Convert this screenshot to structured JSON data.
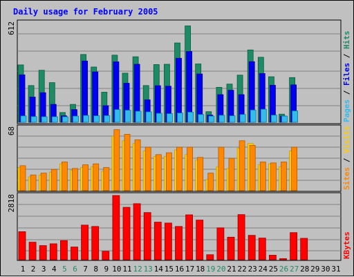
{
  "title": "Daily usage for February 2005",
  "colors": {
    "hits": "#1f8a66",
    "files": "#0000ee",
    "pages": "#33bbee",
    "visits": "#ffcc00",
    "sites": "#ff8800",
    "kbytes": "#ff0000",
    "weekend_label": "#1f8a66",
    "weekday_label": "#000000"
  },
  "chart_data": [
    {
      "type": "bar",
      "panel": "hits-files-pages",
      "max_label": "612",
      "ylim": [
        0,
        612
      ],
      "legend": [
        "Pages",
        "Files",
        "Hits"
      ],
      "legend_separator": " / ",
      "x": [
        "1",
        "2",
        "3",
        "4",
        "5",
        "6",
        "7",
        "8",
        "9",
        "10",
        "11",
        "12",
        "13",
        "14",
        "15",
        "16",
        "17",
        "18",
        "19",
        "20",
        "21",
        "22",
        "23",
        "24",
        "25",
        "26",
        "27",
        "28",
        "29",
        "30",
        "31"
      ],
      "weekend_days": [
        "5",
        "6",
        "12",
        "13",
        "19",
        "20",
        "26",
        "27"
      ],
      "series": [
        {
          "name": "Hits",
          "values": [
            353,
            226,
            320,
            244,
            60,
            110,
            417,
            340,
            185,
            413,
            302,
            403,
            226,
            355,
            357,
            488,
            593,
            359,
            65,
            215,
            235,
            290,
            445,
            400,
            280,
            50,
            275,
            0,
            0,
            0,
            0
          ]
        },
        {
          "name": "Files",
          "values": [
            292,
            155,
            182,
            110,
            40,
            78,
            377,
            310,
            102,
            372,
            240,
            357,
            138,
            225,
            222,
            394,
            436,
            297,
            44,
            170,
            197,
            170,
            373,
            300,
            228,
            38,
            230,
            0,
            0,
            0,
            0
          ]
        },
        {
          "name": "Pages",
          "values": [
            39,
            35,
            34,
            34,
            34,
            38,
            42,
            40,
            41,
            78,
            74,
            68,
            64,
            55,
            53,
            57,
            62,
            48,
            38,
            43,
            40,
            48,
            75,
            80,
            44,
            38,
            70,
            0,
            0,
            0,
            0
          ]
        }
      ]
    },
    {
      "type": "bar",
      "panel": "visits-sites",
      "max_label": "68",
      "ylim": [
        0,
        68
      ],
      "legend": [
        "Sites",
        "Visits"
      ],
      "legend_separator": " / ",
      "x": [
        "1",
        "2",
        "3",
        "4",
        "5",
        "6",
        "7",
        "8",
        "9",
        "10",
        "11",
        "12",
        "13",
        "14",
        "15",
        "16",
        "17",
        "18",
        "19",
        "20",
        "21",
        "22",
        "23",
        "24",
        "25",
        "26",
        "27",
        "28",
        "29",
        "30",
        "31"
      ],
      "series": [
        {
          "name": "Visits",
          "values": [
            25,
            15,
            17,
            20,
            29,
            22,
            25,
            26,
            21,
            59,
            54,
            51,
            43,
            37,
            37,
            44,
            39,
            33,
            12,
            26,
            24,
            46,
            51,
            28,
            29,
            26,
            43,
            0,
            0,
            0,
            0
          ]
        },
        {
          "name": "Sites",
          "values": [
            27,
            17,
            19,
            23,
            31,
            24,
            28,
            29,
            25,
            66,
            61,
            55,
            47,
            39,
            41,
            47,
            47,
            36,
            19,
            47,
            35,
            54,
            49,
            31,
            30,
            31,
            47,
            0,
            0,
            0,
            0
          ]
        }
      ]
    },
    {
      "type": "bar",
      "panel": "kbytes",
      "max_label": "2818",
      "ylim": [
        0,
        2818
      ],
      "legend": [
        "KBytes"
      ],
      "x": [
        "1",
        "2",
        "3",
        "4",
        "5",
        "6",
        "7",
        "8",
        "9",
        "10",
        "11",
        "12",
        "13",
        "14",
        "15",
        "16",
        "17",
        "18",
        "19",
        "20",
        "21",
        "22",
        "23",
        "24",
        "25",
        "26",
        "27",
        "28",
        "29",
        "30",
        "31"
      ],
      "series": [
        {
          "name": "KBytes",
          "values": [
            1230,
            770,
            620,
            700,
            840,
            560,
            1520,
            1460,
            370,
            2818,
            2300,
            2460,
            2070,
            1650,
            1610,
            1460,
            1970,
            1740,
            220,
            1400,
            990,
            1980,
            1070,
            950,
            200,
            50,
            1190,
            940,
            0,
            0,
            0
          ]
        }
      ]
    }
  ]
}
